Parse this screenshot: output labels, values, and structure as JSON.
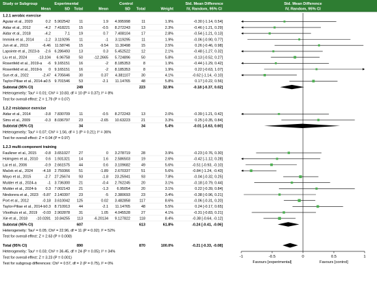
{
  "colors": {
    "header_bg": "#2e7d32",
    "header_text": "#ffffff",
    "header_rule": "#1b5e20",
    "row_rule": "#d9d9d9",
    "text": "#000000",
    "ci_line": "#000000",
    "point_fill": "#4caf50",
    "diamond_fill": "#000000",
    "axis": "#000000"
  },
  "header": {
    "group_experimental": "Experimental",
    "group_control": "Control",
    "group_effect": "Std. Mean Difference",
    "group_plot": "Std. Mean Difference",
    "col_study": "Study or Subgroup",
    "col_mean_e": "Mean",
    "col_sd_e": "SD",
    "col_total_e": "Total",
    "col_mean_c": "Mean",
    "col_sd_c": "SD",
    "col_total_c": "Total",
    "col_weight": "Weight",
    "col_effect": "IV, Random, 95% CI",
    "col_plot": "IV, Random, 95% CI"
  },
  "chart_data": {
    "type": "forest",
    "x_ticks": [
      -1,
      -0.5,
      0,
      0.5,
      1
    ],
    "x_tick_labels": [
      "-1",
      "-0.5",
      "0",
      "0.5",
      "1"
    ],
    "xlim": [
      -1,
      1
    ],
    "favours_left": "Favours [experimental]",
    "favours_right": "Favours [control]",
    "subgroups": [
      {
        "title": "1.2.1 aerobic exercise",
        "studies": [
          {
            "name": "Aguiar et al., 2020",
            "mean_e": "0.2",
            "sd_e": "5.902542",
            "total_e": "11",
            "mean_c": "1.9",
            "sd_c": "4.995998",
            "total_c": "11",
            "weight": "1.9%",
            "ci": "-0.30 [-1.14, 0.54]",
            "est": -0.3,
            "lo": -1.14,
            "hi": 0.54,
            "w": 1.9
          },
          {
            "name": "Aidar et al., 2012",
            "mean_e": "-4.2",
            "sd_e": "7.418221",
            "total_e": "15",
            "mean_c": "-0.5",
            "sd_c": "8.272243",
            "total_c": "13",
            "weight": "2.3%",
            "ci": "-0.46 [-1.21, 0.29]",
            "est": -0.46,
            "lo": -1.21,
            "hi": 0.29,
            "w": 2.3
          },
          {
            "name": "Aidar et al., 2018",
            "mean_e": "-4.2",
            "sd_e": "7.1",
            "total_e": "19",
            "mean_c": "0.7",
            "sd_c": "7.408104",
            "total_c": "17",
            "weight": "2.8%",
            "ci": "-0.54 [-1.21, 0.13]",
            "est": -0.54,
            "lo": -1.21,
            "hi": 0.13,
            "w": 2.8
          },
          {
            "name": "Immink et al., 2014",
            "mean_e": "-1.2",
            "sd_e": "3.119295",
            "total_e": "11",
            "mean_c": "-1",
            "sd_c": "3.119295",
            "total_c": "11",
            "weight": "1.9%",
            "ci": "-0.06 [-0.90, 0.77]",
            "est": -0.06,
            "lo": -0.9,
            "hi": 0.77,
            "w": 1.9
          },
          {
            "name": "Jun et al., 2013",
            "mean_e": "-6.46",
            "sd_e": "11.58746",
            "total_e": "15",
            "mean_c": "-9.54",
            "sd_c": "11.30498",
            "total_c": "15",
            "weight": "2.5%",
            "ci": "0.26 [-0.46, 0.98]",
            "est": 0.26,
            "lo": -0.46,
            "hi": 0.98,
            "w": 2.5
          },
          {
            "name": "Lapointe et al., 2023-b",
            "mean_e": "-2.6",
            "sd_e": "6.286493",
            "total_e": "13",
            "mean_c": "0.3",
            "sd_c": "5.452522",
            "total_c": "12",
            "weight": "2.1%",
            "ci": "-0.48 [-1.27, 0.32]",
            "est": -0.48,
            "lo": -1.27,
            "hi": 0.32,
            "w": 2.1
          },
          {
            "name": "Liu et al., 2024",
            "mean_e": "-13.104",
            "sd_e": "6.96758",
            "total_e": "50",
            "mean_c": "-12.2665",
            "sd_c": "5.724896",
            "total_c": "50",
            "weight": "5.8%",
            "ci": "-0.13 [-0.52, 0.27]",
            "est": -0.13,
            "lo": -0.52,
            "hi": 0.27,
            "w": 5.8
          },
          {
            "name": "Rosenfeld et al., 2019-a",
            "mean_e": "-6",
            "sd_e": "9.165151",
            "total_e": "16",
            "mean_c": "-2",
            "sd_c": "8.185353",
            "total_c": "8",
            "weight": "1.9%",
            "ci": "-0.44 [-1.29, 0.42]",
            "est": -0.44,
            "lo": -1.29,
            "hi": 0.42,
            "w": 1.9
          },
          {
            "name": "Rosenfeld et al., 2019-b",
            "mean_e": "0",
            "sd_e": "9.165151",
            "total_e": "16",
            "mean_c": "-2",
            "sd_c": "8.185353",
            "total_c": "8",
            "weight": "1.9%",
            "ci": "0.22 [-0.63, 1.07]",
            "est": 0.22,
            "lo": -0.63,
            "hi": 1.07,
            "w": 1.9
          },
          {
            "name": "Sun et al., 2022",
            "mean_e": "-2.47",
            "sd_e": "4.705646",
            "total_e": "30",
            "mean_c": "0.37",
            "sd_c": "4.381107",
            "total_c": "30",
            "weight": "4.1%",
            "ci": "-0.62 [-1.14, -0.10]",
            "est": -0.62,
            "lo": -1.14,
            "hi": -0.1,
            "w": 4.1
          },
          {
            "name": "Taylor-Piliae et al., 2014-a",
            "mean_e": "-0.5",
            "sd_e": "9.701546",
            "total_e": "53",
            "mean_c": "-2.1",
            "sd_c": "11.14765",
            "total_c": "48",
            "weight": "5.8%",
            "ci": "0.17 [-0.22, 0.56]",
            "est": 0.17,
            "lo": -0.22,
            "hi": 0.56,
            "w": 5.8
          }
        ],
        "subtotal": {
          "label": "Subtotal (95% CI)",
          "total_e": "249",
          "total_c": "223",
          "weight": "32.9%",
          "ci": "-0.18 [-0.37, 0.02]",
          "est": -0.18,
          "lo": -0.37,
          "hi": 0.02
        },
        "heterogeneity": "Heterogeneity: Tau² = 0.01; Chi² = 10.83, df = 10 (P = 0.37); I² = 8%",
        "overall_test": "Test for overall effect: Z = 1.79 (P = 0.07)"
      },
      {
        "title": "1.2.2 resistance exercise",
        "studies": [
          {
            "name": "Aidar et al., 2014",
            "mean_e": "-3.8",
            "sd_e": "7.830709",
            "total_e": "11",
            "mean_c": "-0.5",
            "sd_c": "8.272243",
            "total_c": "13",
            "weight": "2.0%",
            "ci": "-0.39 [-1.21, 0.42]",
            "est": -0.39,
            "lo": -1.21,
            "hi": 0.42,
            "w": 2.0
          },
          {
            "name": "Sims et al., 2009",
            "mean_e": "-0.3",
            "sd_e": "8.036797",
            "total_e": "23",
            "mean_c": "-2.65",
            "sd_c": "10.63223",
            "total_c": "21",
            "weight": "3.3%",
            "ci": "0.25 [-0.35, 0.84]",
            "est": 0.25,
            "lo": -0.35,
            "hi": 0.84,
            "w": 3.3
          }
        ],
        "subtotal": {
          "label": "Subtotal (95% CI)",
          "total_e": "34",
          "total_c": "34",
          "weight": "5.4%",
          "ci": "-0.01 [-0.63, 0.60]",
          "est": -0.01,
          "lo": -0.63,
          "hi": 0.6
        },
        "heterogeneity": "Heterogeneity: Tau² = 0.07; Chi² = 1.56, df = 1 (P = 0.21); I² = 36%",
        "overall_test": "Test for overall effect: Z = 0.04 (P = 0.97)"
      },
      {
        "title": "1.2.3 multi-component training",
        "studies": [
          {
            "name": "Faulkner et al., 2015",
            "mean_e": "-0.8",
            "sd_e": "3.651027",
            "total_e": "27",
            "mean_c": "0",
            "sd_c": "3.278719",
            "total_c": "28",
            "weight": "3.9%",
            "ci": "-0.23 [-0.76, 0.30]",
            "est": -0.23,
            "lo": -0.76,
            "hi": 0.3,
            "w": 3.9
          },
          {
            "name": "Holmgren et al., 2010",
            "mean_e": "0.6",
            "sd_e": "1.931321",
            "total_e": "14",
            "mean_c": "1.6",
            "sd_c": "2.586503",
            "total_c": "19",
            "weight": "2.6%",
            "ci": "-0.42 [-1.12, 0.28]",
            "est": -0.42,
            "lo": -1.12,
            "hi": 0.28,
            "w": 2.6
          },
          {
            "name": "Lai et al., 2006",
            "mean_e": "-0.9",
            "sd_e": "2.661575",
            "total_e": "44",
            "mean_c": "0.6",
            "sd_c": "3.109682",
            "total_c": "49",
            "weight": "5.6%",
            "ci": "-0.51 [-0.93, -0.10]",
            "est": -0.51,
            "lo": -0.93,
            "hi": -0.1,
            "w": 5.6
          },
          {
            "name": "Maček et al., 2024",
            "mean_e": "-4.18",
            "sd_e": "2.759366",
            "total_e": "51",
            "mean_c": "-1.89",
            "sd_c": "2.670337",
            "total_c": "51",
            "weight": "5.6%",
            "ci": "-0.84 [-1.24, -0.43]",
            "est": -0.84,
            "lo": -1.24,
            "hi": -0.43,
            "w": 5.6
          },
          {
            "name": "Mayo et al., 2015",
            "mean_e": "-2.7",
            "sd_e": "27.25674",
            "total_e": "93",
            "mean_c": "-1.8",
            "sd_c": "23.25941",
            "total_c": "93",
            "weight": "7.8%",
            "ci": "-0.04 [-0.32, 0.25]",
            "est": -0.04,
            "lo": -0.32,
            "hi": 0.25,
            "w": 7.8
          },
          {
            "name": "Mulder et al., 2024-a",
            "mean_e": "-1",
            "sd_e": "3.736300",
            "total_e": "21",
            "mean_c": "-0.4",
            "sd_c": "2.762245",
            "total_c": "20",
            "weight": "3.1%",
            "ci": "-0.18 [-0.79, 0.44]",
            "est": -0.18,
            "lo": -0.79,
            "hi": 0.44,
            "w": 3.1
          },
          {
            "name": "Mulder et al., 2024-b",
            "mean_e": "0.3",
            "sd_e": "7.002143",
            "total_e": "21",
            "mean_c": "-1.3",
            "sd_c": "6.95054",
            "total_c": "20",
            "weight": "3.1%",
            "ci": "0.22 [-0.39, 0.84]",
            "est": 0.22,
            "lo": -0.39,
            "hi": 0.84,
            "w": 3.1
          },
          {
            "name": "Nindorera et al., 2023",
            "mean_e": "-5.87",
            "sd_e": "2.140397",
            "total_e": "23",
            "mean_c": "-5",
            "sd_c": "2.380693",
            "total_c": "23",
            "weight": "3.4%",
            "ci": "-0.38 [-0.96, 0.21]",
            "est": -0.38,
            "lo": -0.96,
            "hi": 0.21,
            "w": 3.4
          },
          {
            "name": "Port et al., 2012",
            "mean_e": "-0.18",
            "sd_e": "3.610042",
            "total_e": "125",
            "mean_c": "0.02",
            "sd_c": "3.482858",
            "total_c": "117",
            "weight": "8.6%",
            "ci": "-0.06 [-0.31, 0.20]",
            "est": -0.06,
            "lo": -0.31,
            "hi": 0.2,
            "w": 8.6
          },
          {
            "name": "Taylor-Piliae et al., 2014-b",
            "mean_e": "0.3",
            "sd_e": "8.710913",
            "total_e": "44",
            "mean_c": "-2.1",
            "sd_c": "11.14765",
            "total_c": "48",
            "weight": "5.5%",
            "ci": "0.24 [-0.17, 0.65]",
            "est": 0.24,
            "lo": -0.17,
            "hi": 0.65,
            "w": 5.5
          },
          {
            "name": "Vloothuis et al., 2019",
            "mean_e": "-0.03",
            "sd_e": "2.902878",
            "total_e": "31",
            "mean_c": "1.05",
            "sd_c": "4.045528",
            "total_c": "27",
            "weight": "4.1%",
            "ci": "-0.31 [-0.83, 0.21]",
            "est": -0.31,
            "lo": -0.83,
            "hi": 0.21,
            "w": 4.1
          },
          {
            "name": "Xie et al., 2018",
            "mean_e": "-10.0281",
            "sd_e": "10.84255",
            "total_e": "113",
            "mean_c": "-6.20134",
            "sd_c": "9.127822",
            "total_c": "118",
            "weight": "8.4%",
            "ci": "-0.38 [-0.64, -0.12]",
            "est": -0.38,
            "lo": -0.64,
            "hi": -0.12,
            "w": 8.4
          }
        ],
        "subtotal": {
          "label": "Subtotal (95% CI)",
          "total_e": "607",
          "total_c": "613",
          "weight": "61.8%",
          "ci": "-0.24 [-0.41, -0.06]",
          "est": -0.24,
          "lo": -0.41,
          "hi": -0.06
        },
        "heterogeneity": "Heterogeneity: Tau² = 0.05; Chi² = 22.96, df = 11 (P = 0.02); I² = 52%",
        "overall_test": "Test for overall effect: Z = 2.63 (P = 0.008)"
      }
    ],
    "total": {
      "label": "Total (95% CI)",
      "total_e": "890",
      "total_c": "870",
      "weight": "100.0%",
      "ci": "-0.21 [-0.33, -0.08]",
      "est": -0.21,
      "lo": -0.33,
      "hi": -0.08
    },
    "footer": [
      "Heterogeneity: Tau² = 0.03; Chi² = 36.45, df = 24 (P = 0.05); I² = 34%",
      "Test for overall effect: Z = 3.23 (P = 0.001)",
      "Test for subgroup differences: Chi² = 0.57, df = 2 (P = 0.75), I² = 0%"
    ]
  }
}
